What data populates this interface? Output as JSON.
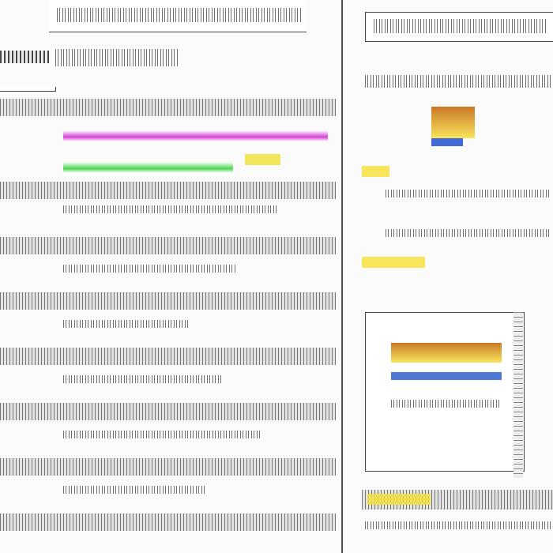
{
  "colors": {
    "accent_magenta": "#d020d0",
    "accent_green": "#30d030",
    "accent_yellow": "#f0d000",
    "accent_blue": "#2050d0"
  },
  "icons": [
    "menu-icon",
    "chevron-right-icon",
    "scrollbar"
  ]
}
